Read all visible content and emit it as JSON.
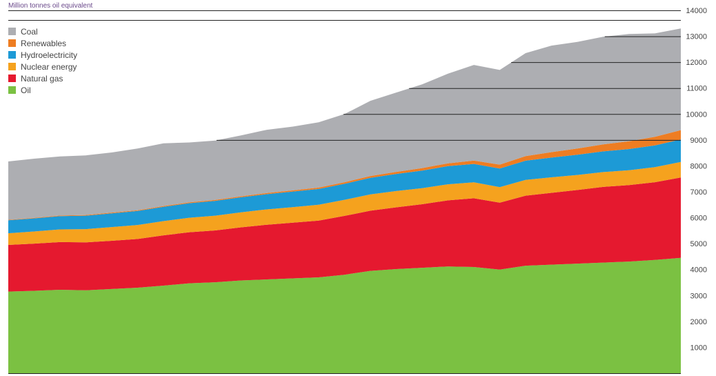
{
  "chart_data": {
    "type": "area",
    "stacked": true,
    "unit_label": "Million tonnes oil equivalent",
    "title": "",
    "xlabel": "",
    "ylabel": "",
    "ylim": [
      0,
      14000
    ],
    "y_ticks": [
      1000,
      2000,
      3000,
      4000,
      5000,
      6000,
      7000,
      8000,
      9000,
      10000,
      11000,
      12000,
      13000,
      14000
    ],
    "y_axis_side": "right",
    "grid": true,
    "legend_position": "top-left",
    "x_points": 27,
    "series": [
      {
        "name": "Oil",
        "color": "#7bc142",
        "values": [
          3150,
          3180,
          3220,
          3200,
          3250,
          3300,
          3380,
          3470,
          3510,
          3580,
          3620,
          3660,
          3700,
          3800,
          3950,
          4020,
          4070,
          4120,
          4100,
          4000,
          4150,
          4190,
          4230,
          4270,
          4310,
          4370,
          4450
        ]
      },
      {
        "name": "Natural gas",
        "color": "#e5192f",
        "values": [
          1800,
          1820,
          1840,
          1850,
          1860,
          1880,
          1940,
          1970,
          2000,
          2050,
          2110,
          2150,
          2190,
          2270,
          2320,
          2380,
          2450,
          2550,
          2650,
          2580,
          2700,
          2770,
          2840,
          2920,
          2950,
          3000,
          3100
        ]
      },
      {
        "name": "Nuclear energy",
        "color": "#f5a21e",
        "values": [
          450,
          470,
          490,
          510,
          530,
          540,
          550,
          560,
          570,
          580,
          590,
          600,
          610,
          620,
          630,
          630,
          620,
          620,
          615,
          600,
          610,
          600,
          580,
          570,
          570,
          580,
          600
        ]
      },
      {
        "name": "Hydroelectricity",
        "color": "#1d9ad6",
        "values": [
          500,
          505,
          510,
          520,
          530,
          540,
          550,
          560,
          570,
          580,
          590,
          600,
          610,
          620,
          640,
          660,
          680,
          700,
          710,
          720,
          740,
          760,
          780,
          800,
          820,
          840,
          870
        ]
      },
      {
        "name": "Renewables",
        "color": "#ee7d22",
        "values": [
          20,
          22,
          24,
          26,
          28,
          30,
          32,
          34,
          36,
          38,
          42,
          46,
          52,
          60,
          70,
          80,
          95,
          110,
          130,
          150,
          180,
          210,
          240,
          270,
          300,
          330,
          360
        ]
      },
      {
        "name": "Coal",
        "color": "#adaeb2",
        "values": [
          2250,
          2280,
          2280,
          2300,
          2320,
          2380,
          2420,
          2310,
          2290,
          2350,
          2440,
          2460,
          2520,
          2630,
          2900,
          3060,
          3230,
          3460,
          3690,
          3650,
          3970,
          4110,
          4110,
          4150,
          4140,
          3990,
          3920
        ]
      }
    ]
  },
  "legend_items": [
    "Coal",
    "Renewables",
    "Hydroelectricity",
    "Nuclear energy",
    "Natural gas",
    "Oil"
  ],
  "colors": {
    "Coal": "#adaeb2",
    "Renewables": "#ee7d22",
    "Hydroelectricity": "#1d9ad6",
    "Nuclear energy": "#f5a21e",
    "Natural gas": "#e5192f",
    "Oil": "#7bc142",
    "unit_label": "#6b4a8b",
    "grid": "#222222",
    "tick_text": "#444444"
  }
}
